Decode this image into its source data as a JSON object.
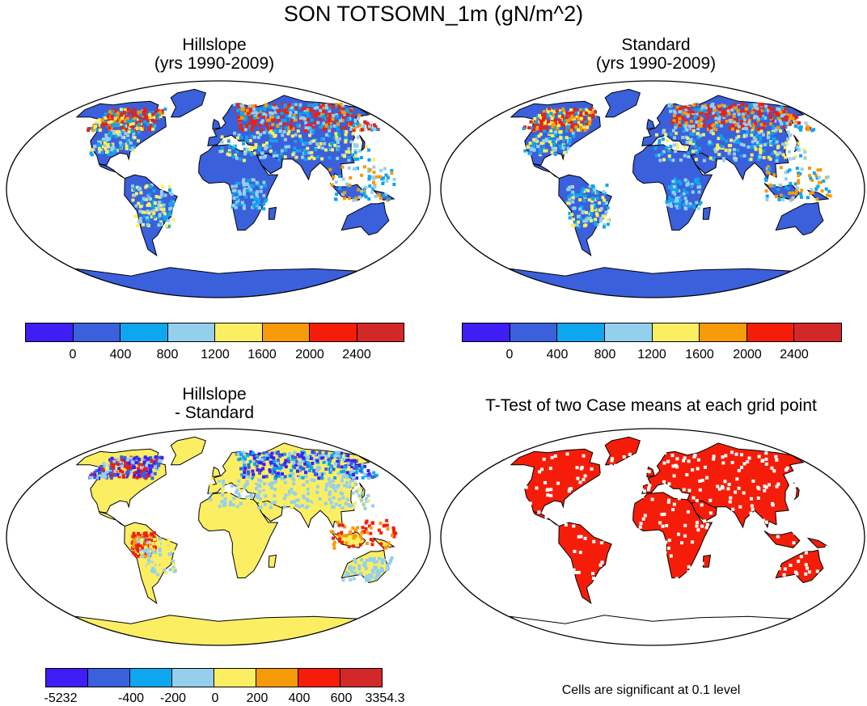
{
  "title": "SON TOTSOMN_1m (gN/m^2)",
  "panels": [
    {
      "title_line1": "Hillslope",
      "title_line2": "(yrs 1990-2009)"
    },
    {
      "title_line1": "Standard",
      "title_line2": "(yrs 1990-2009)"
    },
    {
      "title_line1": "Hillslope",
      "title_line2": "- Standard"
    },
    {
      "title_line1": "T-Test of two Case means at each grid point",
      "title_line2": ""
    }
  ],
  "colorbars": {
    "abs": {
      "colors": [
        "#3d1ef5",
        "#3b60dc",
        "#0ea6ee",
        "#94cfee",
        "#fbee62",
        "#f69a0a",
        "#f51d09",
        "#d3282a"
      ],
      "labels": [
        "0",
        "400",
        "800",
        "1200",
        "1600",
        "2000",
        "2400"
      ]
    },
    "diff": {
      "colors": [
        "#3d1ef5",
        "#3b60dc",
        "#0ea6ee",
        "#94cfee",
        "#fbee62",
        "#f69a0a",
        "#f51d09",
        "#d3282a"
      ],
      "labels": [
        "-5232",
        "-400",
        "-200",
        "0",
        "200",
        "400",
        "600",
        "3354.3"
      ]
    }
  },
  "note": "Cells are significant at 0.1 level"
}
